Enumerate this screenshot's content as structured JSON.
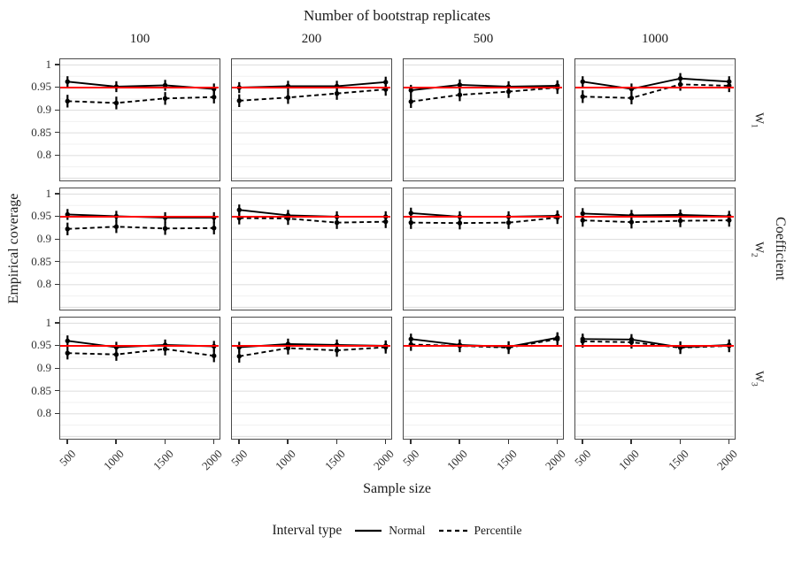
{
  "title": "Number of bootstrap replicates",
  "axes": {
    "x_title": "Sample size",
    "y_title": "Empirical coverage",
    "right_title": "Coefficient"
  },
  "legend": {
    "title": "Interval type",
    "items": [
      {
        "label": "Normal",
        "linetype": "solid"
      },
      {
        "label": "Percentile",
        "linetype": "dashed"
      }
    ]
  },
  "colors": {
    "series": "#000000",
    "reference_line": "#ff0000",
    "grid_major": "#e0e0e0",
    "grid_minor": "#f0f0f0",
    "panel_border": "#4a4a4a",
    "tick": "#333333",
    "text": "#1a1a1a",
    "tick_text": "#303030"
  },
  "chart_data": {
    "type": "line",
    "title": "Number of bootstrap replicates",
    "xlabel": "Sample size",
    "ylabel": "Empirical coverage",
    "facet_col_title": "Number of bootstrap replicates",
    "facet_row_title": "Coefficient",
    "facet_columns": [
      "100",
      "200",
      "500",
      "1000"
    ],
    "facet_row_labels": [
      {
        "base": "W",
        "sub": "1"
      },
      {
        "base": "W",
        "sub": "2"
      },
      {
        "base": "W",
        "sub": "3"
      }
    ],
    "x": [
      500,
      1000,
      1500,
      2000
    ],
    "x_tick_labels": [
      "500",
      "1000",
      "1500",
      "2000"
    ],
    "xlim": [
      425,
      2075
    ],
    "y_breaks": [
      1,
      0.95,
      0.9,
      0.85,
      0.8,
      0.75
    ],
    "y_tick_labels": [
      "1",
      "0.95",
      "0.9",
      "0.85",
      "0.8"
    ],
    "y_minor_breaks": [
      0.975,
      0.925,
      0.875,
      0.825,
      0.775
    ],
    "ylim": [
      0.741,
      1.0125
    ],
    "reference_line": 0.95,
    "legend_position": "bottom",
    "grid": "horizontal-only",
    "series_names": [
      "Normal",
      "Percentile"
    ],
    "error_halfwidth": {
      "Normal": 0.012,
      "Percentile": 0.014
    },
    "facets": [
      {
        "row": "W1",
        "col": "100",
        "Normal": [
          0.963,
          0.952,
          0.955,
          0.947
        ],
        "Percentile": [
          0.92,
          0.916,
          0.926,
          0.929
        ]
      },
      {
        "row": "W1",
        "col": "200",
        "Normal": [
          0.95,
          0.953,
          0.953,
          0.962
        ],
        "Percentile": [
          0.921,
          0.928,
          0.937,
          0.946
        ]
      },
      {
        "row": "W1",
        "col": "500",
        "Normal": [
          0.944,
          0.956,
          0.952,
          0.954
        ],
        "Percentile": [
          0.919,
          0.934,
          0.941,
          0.95
        ]
      },
      {
        "row": "W1",
        "col": "1000",
        "Normal": [
          0.963,
          0.947,
          0.97,
          0.963
        ],
        "Percentile": [
          0.93,
          0.927,
          0.957,
          0.954
        ]
      },
      {
        "row": "W2",
        "col": "100",
        "Normal": [
          0.955,
          0.951,
          0.948,
          0.948
        ],
        "Percentile": [
          0.923,
          0.928,
          0.924,
          0.925
        ]
      },
      {
        "row": "W2",
        "col": "200",
        "Normal": [
          0.965,
          0.953,
          0.95,
          0.95
        ],
        "Percentile": [
          0.947,
          0.946,
          0.937,
          0.939
        ]
      },
      {
        "row": "W2",
        "col": "500",
        "Normal": [
          0.958,
          0.95,
          0.95,
          0.952
        ],
        "Percentile": [
          0.937,
          0.936,
          0.937,
          0.948
        ]
      },
      {
        "row": "W2",
        "col": "1000",
        "Normal": [
          0.957,
          0.953,
          0.954,
          0.951
        ],
        "Percentile": [
          0.942,
          0.938,
          0.941,
          0.942
        ]
      },
      {
        "row": "W3",
        "col": "100",
        "Normal": [
          0.961,
          0.947,
          0.952,
          0.949
        ],
        "Percentile": [
          0.934,
          0.931,
          0.943,
          0.928
        ]
      },
      {
        "row": "W3",
        "col": "200",
        "Normal": [
          0.947,
          0.954,
          0.952,
          0.95
        ],
        "Percentile": [
          0.927,
          0.945,
          0.94,
          0.947
        ]
      },
      {
        "row": "W3",
        "col": "500",
        "Normal": [
          0.965,
          0.952,
          0.948,
          0.968
        ],
        "Percentile": [
          0.953,
          0.95,
          0.946,
          0.965
        ]
      },
      {
        "row": "W3",
        "col": "1000",
        "Normal": [
          0.965,
          0.964,
          0.947,
          0.952
        ],
        "Percentile": [
          0.96,
          0.958,
          0.946,
          0.95
        ]
      }
    ]
  }
}
